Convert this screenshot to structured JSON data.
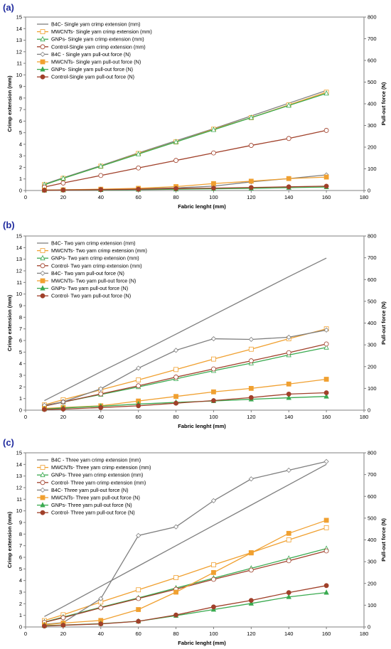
{
  "panel_labels": [
    "(a)",
    "(b)",
    "(c)"
  ],
  "colors": {
    "panel_label": "#1f2a9e",
    "B4C": "#7f7f7f",
    "MWCNTs": "#f0a030",
    "GNPs": "#3aaa50",
    "Control": "#a0402a"
  },
  "chart_data": [
    {
      "type": "line",
      "panel": "(a)",
      "xlabel": "Fabric lenght (mm)",
      "ylabel": "Crimp extension (mm)",
      "ylabel_right": "Pull-out force (N)",
      "xlim": [
        0,
        180
      ],
      "xticks": [
        0,
        20,
        40,
        60,
        80,
        100,
        120,
        140,
        160,
        180
      ],
      "ylim": [
        0,
        15
      ],
      "yticks": [
        0,
        1,
        2,
        3,
        4,
        5,
        6,
        7,
        8,
        9,
        10,
        11,
        12,
        13,
        14,
        15
      ],
      "ylim_right": [
        0,
        800
      ],
      "yticks_right": [
        0,
        100,
        200,
        300,
        400,
        500,
        600,
        700,
        800
      ],
      "legend_position": "top-left",
      "series": [
        {
          "name": "B4C- Single yarn crimp extension (mm)",
          "color": "#7f7f7f",
          "marker": "none",
          "axis": "left",
          "x": [
            10,
            20,
            40,
            60,
            80,
            100,
            120,
            140,
            160
          ],
          "y": [
            0.55,
            1.1,
            2.15,
            3.25,
            4.3,
            5.35,
            6.45,
            7.55,
            8.65
          ]
        },
        {
          "name": "MWCNTs- Single yarn crimp extension (mm)",
          "color": "#f0a030",
          "marker": "open-square",
          "axis": "left",
          "x": [
            10,
            20,
            40,
            60,
            80,
            100,
            120,
            140,
            160
          ],
          "y": [
            0.5,
            1.05,
            2.1,
            3.2,
            4.2,
            5.3,
            6.3,
            7.4,
            8.5
          ]
        },
        {
          "name": "GNPs- Single yarn crimp extension (mm)",
          "color": "#3aaa50",
          "marker": "open-triangle",
          "axis": "left",
          "x": [
            10,
            20,
            40,
            60,
            80,
            100,
            120,
            140,
            160
          ],
          "y": [
            0.5,
            1.05,
            2.1,
            3.15,
            4.2,
            5.25,
            6.3,
            7.35,
            8.4
          ]
        },
        {
          "name": "Control-Single yarn crimp extension (mm)",
          "color": "#a0402a",
          "marker": "open-circle",
          "axis": "left",
          "x": [
            10,
            20,
            40,
            60,
            80,
            100,
            120,
            140,
            160
          ],
          "y": [
            0.3,
            0.65,
            1.3,
            1.95,
            2.6,
            3.25,
            3.9,
            4.5,
            5.2
          ]
        },
        {
          "name": "B4C - Single yarn pull-out force (N)",
          "color": "#7f7f7f",
          "marker": "open-diamond",
          "axis": "right",
          "x": [
            10,
            20,
            40,
            60,
            80,
            100,
            120,
            140,
            160
          ],
          "y": [
            2,
            3,
            5,
            8,
            12,
            20,
            40,
            55,
            72
          ]
        },
        {
          "name": "MWCNTs- Single yarn pull-out force (N)",
          "color": "#f0a030",
          "marker": "square",
          "axis": "right",
          "x": [
            10,
            20,
            40,
            60,
            80,
            100,
            120,
            140,
            160
          ],
          "y": [
            2,
            3,
            6,
            10,
            18,
            32,
            43,
            55,
            62
          ]
        },
        {
          "name": "GNPs- Single yarn pull-out force (N)",
          "color": "#3aaa50",
          "marker": "triangle",
          "axis": "right",
          "x": [
            10,
            20,
            40,
            60,
            80,
            100,
            120,
            140,
            160
          ],
          "y": [
            1,
            2,
            3,
            4,
            6,
            8,
            10,
            13,
            16
          ]
        },
        {
          "name": "Control-Single yarn pull-out force (N)",
          "color": "#a0402a",
          "marker": "circle",
          "axis": "right",
          "x": [
            10,
            20,
            40,
            60,
            80,
            100,
            120,
            140,
            160
          ],
          "y": [
            1,
            2,
            4,
            6,
            9,
            11,
            14,
            17,
            20
          ]
        }
      ]
    },
    {
      "type": "line",
      "panel": "(b)",
      "xlabel": "Fabric lenght (mm)",
      "ylabel": "Crimp extension (mm)",
      "ylabel_right": "Pull-out force (N)",
      "xlim": [
        0,
        180
      ],
      "xticks": [
        0,
        20,
        40,
        60,
        80,
        100,
        120,
        140,
        160,
        180
      ],
      "ylim": [
        0,
        15
      ],
      "yticks": [
        0,
        1,
        2,
        3,
        4,
        5,
        6,
        7,
        8,
        9,
        10,
        11,
        12,
        13,
        14,
        15
      ],
      "ylim_right": [
        0,
        800
      ],
      "yticks_right": [
        0,
        100,
        200,
        300,
        400,
        500,
        600,
        700,
        800
      ],
      "legend_position": "top-left",
      "series": [
        {
          "name": "B4C- Two yarn crimp extension (mm)",
          "color": "#7f7f7f",
          "marker": "none",
          "axis": "left",
          "x": [
            10,
            20,
            40,
            60,
            80,
            100,
            120,
            140,
            160
          ],
          "y": [
            0.82,
            1.65,
            3.3,
            4.9,
            6.55,
            8.2,
            9.85,
            11.5,
            13.1
          ]
        },
        {
          "name": "MWCNTs- Two yarn crimp extension (mm)",
          "color": "#f0a030",
          "marker": "open-square",
          "axis": "left",
          "x": [
            10,
            20,
            40,
            60,
            80,
            100,
            120,
            140,
            160
          ],
          "y": [
            0.45,
            0.9,
            1.75,
            2.6,
            3.5,
            4.4,
            5.25,
            6.15,
            7.0
          ]
        },
        {
          "name": "GNPs- Two yarn crimp extension (mm)",
          "color": "#3aaa50",
          "marker": "open-triangle",
          "axis": "left",
          "x": [
            10,
            20,
            40,
            60,
            80,
            100,
            120,
            140,
            160
          ],
          "y": [
            0.35,
            0.7,
            1.35,
            2.0,
            2.7,
            3.4,
            4.05,
            4.75,
            5.4
          ]
        },
        {
          "name": "Control- Two yarn crimp extension (mm)",
          "color": "#a0402a",
          "marker": "open-circle",
          "axis": "left",
          "x": [
            10,
            20,
            40,
            60,
            80,
            100,
            120,
            140,
            160
          ],
          "y": [
            0.35,
            0.7,
            1.4,
            2.1,
            2.85,
            3.55,
            4.25,
            4.95,
            5.7
          ]
        },
        {
          "name": "B4C- Two yarn pull-out force (N)",
          "color": "#7f7f7f",
          "marker": "open-diamond",
          "axis": "right",
          "x": [
            10,
            20,
            40,
            60,
            80,
            100,
            120,
            140,
            160
          ],
          "y": [
            22,
            38,
            98,
            193,
            275,
            328,
            325,
            335,
            368
          ]
        },
        {
          "name": "MWCNTs- Two yarn pull-out force (N)",
          "color": "#f0a030",
          "marker": "square",
          "axis": "right",
          "x": [
            10,
            20,
            40,
            60,
            80,
            100,
            120,
            140,
            160
          ],
          "y": [
            8,
            12,
            20,
            42,
            63,
            84,
            100,
            120,
            142
          ]
        },
        {
          "name": "GNPs- Two yarn pull-out force (N)",
          "color": "#3aaa50",
          "marker": "triangle",
          "axis": "right",
          "x": [
            10,
            20,
            40,
            60,
            80,
            100,
            120,
            140,
            160
          ],
          "y": [
            5,
            10,
            18,
            28,
            36,
            42,
            50,
            57,
            63
          ]
        },
        {
          "name": "Control- Two yarn pull-out force (N)",
          "color": "#a0402a",
          "marker": "circle",
          "axis": "right",
          "x": [
            10,
            20,
            40,
            60,
            80,
            100,
            120,
            140,
            160
          ],
          "y": [
            3,
            5,
            12,
            20,
            32,
            44,
            58,
            74,
            80
          ]
        }
      ]
    },
    {
      "type": "line",
      "panel": "(c)",
      "xlabel": "Fabric lenght (mm)",
      "ylabel": "Crimp extension (mm)",
      "ylabel_right": "Pull-out force (N)",
      "xlim": [
        0,
        180
      ],
      "xticks": [
        0,
        20,
        40,
        60,
        80,
        100,
        120,
        140,
        160,
        180
      ],
      "ylim": [
        0,
        15
      ],
      "yticks": [
        0,
        1,
        2,
        3,
        4,
        5,
        6,
        7,
        8,
        9,
        10,
        11,
        12,
        13,
        14,
        15
      ],
      "ylim_right": [
        0,
        800
      ],
      "yticks_right": [
        0,
        100,
        200,
        300,
        400,
        500,
        600,
        700,
        800
      ],
      "legend_position": "top-left",
      "series": [
        {
          "name": "B4C - Three yarn crimp extension (mm)",
          "color": "#7f7f7f",
          "marker": "none",
          "axis": "left",
          "x": [
            10,
            20,
            40,
            60,
            80,
            100,
            120,
            140,
            160
          ],
          "y": [
            0.9,
            1.75,
            3.5,
            5.25,
            7.0,
            8.75,
            10.5,
            12.25,
            14.0
          ]
        },
        {
          "name": "MWCNTs- Three yarn crimp extension (mm)",
          "color": "#f0a030",
          "marker": "open-square",
          "axis": "left",
          "x": [
            10,
            20,
            40,
            60,
            80,
            100,
            120,
            140,
            160
          ],
          "y": [
            0.55,
            1.05,
            2.15,
            3.2,
            4.25,
            5.35,
            6.4,
            7.5,
            8.55
          ]
        },
        {
          "name": "GNPs- Three yarn crimp extension (mm)",
          "color": "#3aaa50",
          "marker": "open-triangle",
          "axis": "left",
          "x": [
            10,
            20,
            40,
            60,
            80,
            100,
            120,
            140,
            160
          ],
          "y": [
            0.42,
            0.85,
            1.7,
            2.5,
            3.35,
            4.2,
            5.05,
            5.9,
            6.75
          ]
        },
        {
          "name": "Control- Three yarn crimp extension (mm)",
          "color": "#a0402a",
          "marker": "open-circle",
          "axis": "left",
          "x": [
            10,
            20,
            40,
            60,
            80,
            100,
            120,
            140,
            160
          ],
          "y": [
            0.4,
            0.8,
            1.65,
            2.45,
            3.25,
            4.1,
            4.9,
            5.7,
            6.55
          ]
        },
        {
          "name": "B4C- Three yarn pull-out force (N)",
          "color": "#7f7f7f",
          "marker": "open-diamond",
          "axis": "right",
          "x": [
            10,
            20,
            40,
            60,
            80,
            100,
            120,
            140,
            160
          ],
          "y": [
            12,
            20,
            130,
            420,
            460,
            580,
            680,
            720,
            760
          ]
        },
        {
          "name": "MWCNTs- Three yarn pull-out force (N)",
          "color": "#f0a030",
          "marker": "square",
          "axis": "right",
          "x": [
            10,
            20,
            40,
            60,
            80,
            100,
            120,
            140,
            160
          ],
          "y": [
            10,
            18,
            30,
            80,
            160,
            250,
            340,
            430,
            490
          ]
        },
        {
          "name": "GNPs- Three yarn pull-out force (N)",
          "color": "#3aaa50",
          "marker": "triangle",
          "axis": "right",
          "x": [
            10,
            20,
            40,
            60,
            80,
            100,
            120,
            140,
            160
          ],
          "y": [
            6,
            9,
            15,
            26,
            52,
            80,
            108,
            138,
            158
          ]
        },
        {
          "name": "Control- Three yarn pull-out force (N)",
          "color": "#a0402a",
          "marker": "circle",
          "axis": "right",
          "x": [
            10,
            20,
            40,
            60,
            80,
            100,
            120,
            140,
            160
          ],
          "y": [
            4,
            8,
            14,
            26,
            55,
            92,
            122,
            158,
            190
          ]
        }
      ]
    }
  ]
}
